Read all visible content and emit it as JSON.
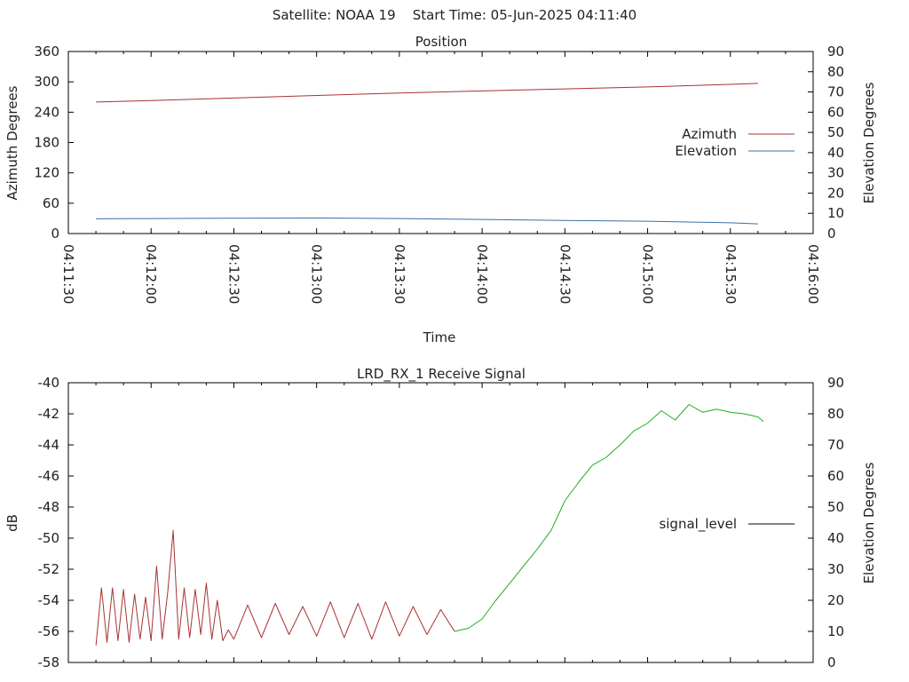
{
  "header": {
    "satellite_label": "Satellite: NOAA 19",
    "start_time_label": "Start Time: 05-Jun-2025 04:11:40"
  },
  "chart_data": [
    {
      "type": "line",
      "title": "Position",
      "xlabel": "Time",
      "ylabel": "Azimuth Degrees",
      "y2label": "Elevation Degrees",
      "xlim": [
        "04:11:30",
        "04:16:00"
      ],
      "ylim": [
        0,
        360
      ],
      "y2lim": [
        0,
        90
      ],
      "x_ticks": [
        "04:11:30",
        "04:12:00",
        "04:12:30",
        "04:13:00",
        "04:13:30",
        "04:14:00",
        "04:14:30",
        "04:15:00",
        "04:15:30",
        "04:16:00"
      ],
      "y_ticks": [
        0,
        60,
        120,
        180,
        240,
        300,
        360
      ],
      "y2_ticks": [
        0,
        10,
        20,
        30,
        40,
        50,
        60,
        70,
        80,
        90
      ],
      "legend_position": "right",
      "series": [
        {
          "name": "Azimuth",
          "axis": "left",
          "color": "#a83232",
          "x": [
            "04:11:40",
            "04:12:00",
            "04:12:30",
            "04:13:00",
            "04:13:30",
            "04:14:00",
            "04:14:30",
            "04:15:00",
            "04:15:30",
            "04:15:40"
          ],
          "values": [
            260,
            263,
            268,
            273,
            278,
            282,
            286,
            290,
            295,
            297
          ]
        },
        {
          "name": "Elevation",
          "axis": "right",
          "color": "#3a6fa8",
          "x": [
            "04:11:40",
            "04:12:00",
            "04:12:30",
            "04:13:00",
            "04:13:30",
            "04:14:00",
            "04:14:30",
            "04:15:00",
            "04:15:30",
            "04:15:40"
          ],
          "values": [
            7.3,
            7.4,
            7.6,
            7.7,
            7.4,
            7.0,
            6.5,
            6.1,
            5.3,
            4.8
          ]
        }
      ]
    },
    {
      "type": "line",
      "title": "LRD_RX_1 Receive Signal",
      "ylabel": "dB",
      "y2label": "Elevation Degrees",
      "xlim": [
        "04:11:30",
        "04:16:00"
      ],
      "ylim": [
        -58,
        -40
      ],
      "y2lim": [
        0,
        90
      ],
      "y_ticks": [
        -58,
        -56,
        -54,
        -52,
        -50,
        -48,
        -46,
        -44,
        -42,
        -40
      ],
      "y2_ticks": [
        0,
        10,
        20,
        30,
        40,
        50,
        60,
        70,
        80,
        90
      ],
      "legend_position": "right",
      "legend_entry": "signal_level",
      "legend_color": "#000000",
      "series": [
        {
          "segment": "noise",
          "color": "#a83232",
          "x": [
            "04:11:40",
            "04:11:42",
            "04:11:44",
            "04:11:46",
            "04:11:48",
            "04:11:50",
            "04:11:52",
            "04:11:54",
            "04:11:56",
            "04:11:58",
            "04:12:00",
            "04:12:02",
            "04:12:04",
            "04:12:06",
            "04:12:08",
            "04:12:10",
            "04:12:12",
            "04:12:14",
            "04:12:16",
            "04:12:18",
            "04:12:20",
            "04:12:22",
            "04:12:24",
            "04:12:26",
            "04:12:28",
            "04:12:30",
            "04:12:35",
            "04:12:40",
            "04:12:45",
            "04:12:50",
            "04:12:55",
            "04:13:00",
            "04:13:05",
            "04:13:10",
            "04:13:15",
            "04:13:20",
            "04:13:25",
            "04:13:30",
            "04:13:35",
            "04:13:40",
            "04:13:45",
            "04:13:50"
          ],
          "values": [
            -56.9,
            -53.2,
            -56.7,
            -53.2,
            -56.6,
            -53.3,
            -56.7,
            -53.6,
            -56.5,
            -53.8,
            -56.6,
            -51.8,
            -56.5,
            -53.5,
            -49.5,
            -56.5,
            -53.2,
            -56.4,
            -53.3,
            -56.2,
            -52.9,
            -56.5,
            -54.0,
            -56.6,
            -55.9,
            -56.5,
            -54.3,
            -56.4,
            -54.2,
            -56.2,
            -54.4,
            -56.3,
            -54.1,
            -56.4,
            -54.2,
            -56.5,
            -54.1,
            -56.3,
            -54.4,
            -56.2,
            -54.6,
            -56.0
          ]
        },
        {
          "segment": "signal",
          "color": "#1fae1f",
          "x": [
            "04:13:50",
            "04:13:55",
            "04:14:00",
            "04:14:05",
            "04:14:10",
            "04:14:15",
            "04:14:20",
            "04:14:25",
            "04:14:30",
            "04:14:35",
            "04:14:40",
            "04:14:45",
            "04:14:50",
            "04:14:55",
            "04:15:00",
            "04:15:05",
            "04:15:10",
            "04:15:15",
            "04:15:20",
            "04:15:25",
            "04:15:30",
            "04:15:35",
            "04:15:40",
            "04:15:42"
          ],
          "values": [
            -56.0,
            -55.8,
            -55.2,
            -54.0,
            -52.9,
            -51.8,
            -50.7,
            -49.5,
            -47.6,
            -46.4,
            -45.3,
            -44.8,
            -44.0,
            -43.1,
            -42.6,
            -41.8,
            -42.4,
            -41.4,
            -41.9,
            -41.7,
            -41.9,
            -42.0,
            -42.2,
            -42.5
          ]
        }
      ]
    }
  ]
}
